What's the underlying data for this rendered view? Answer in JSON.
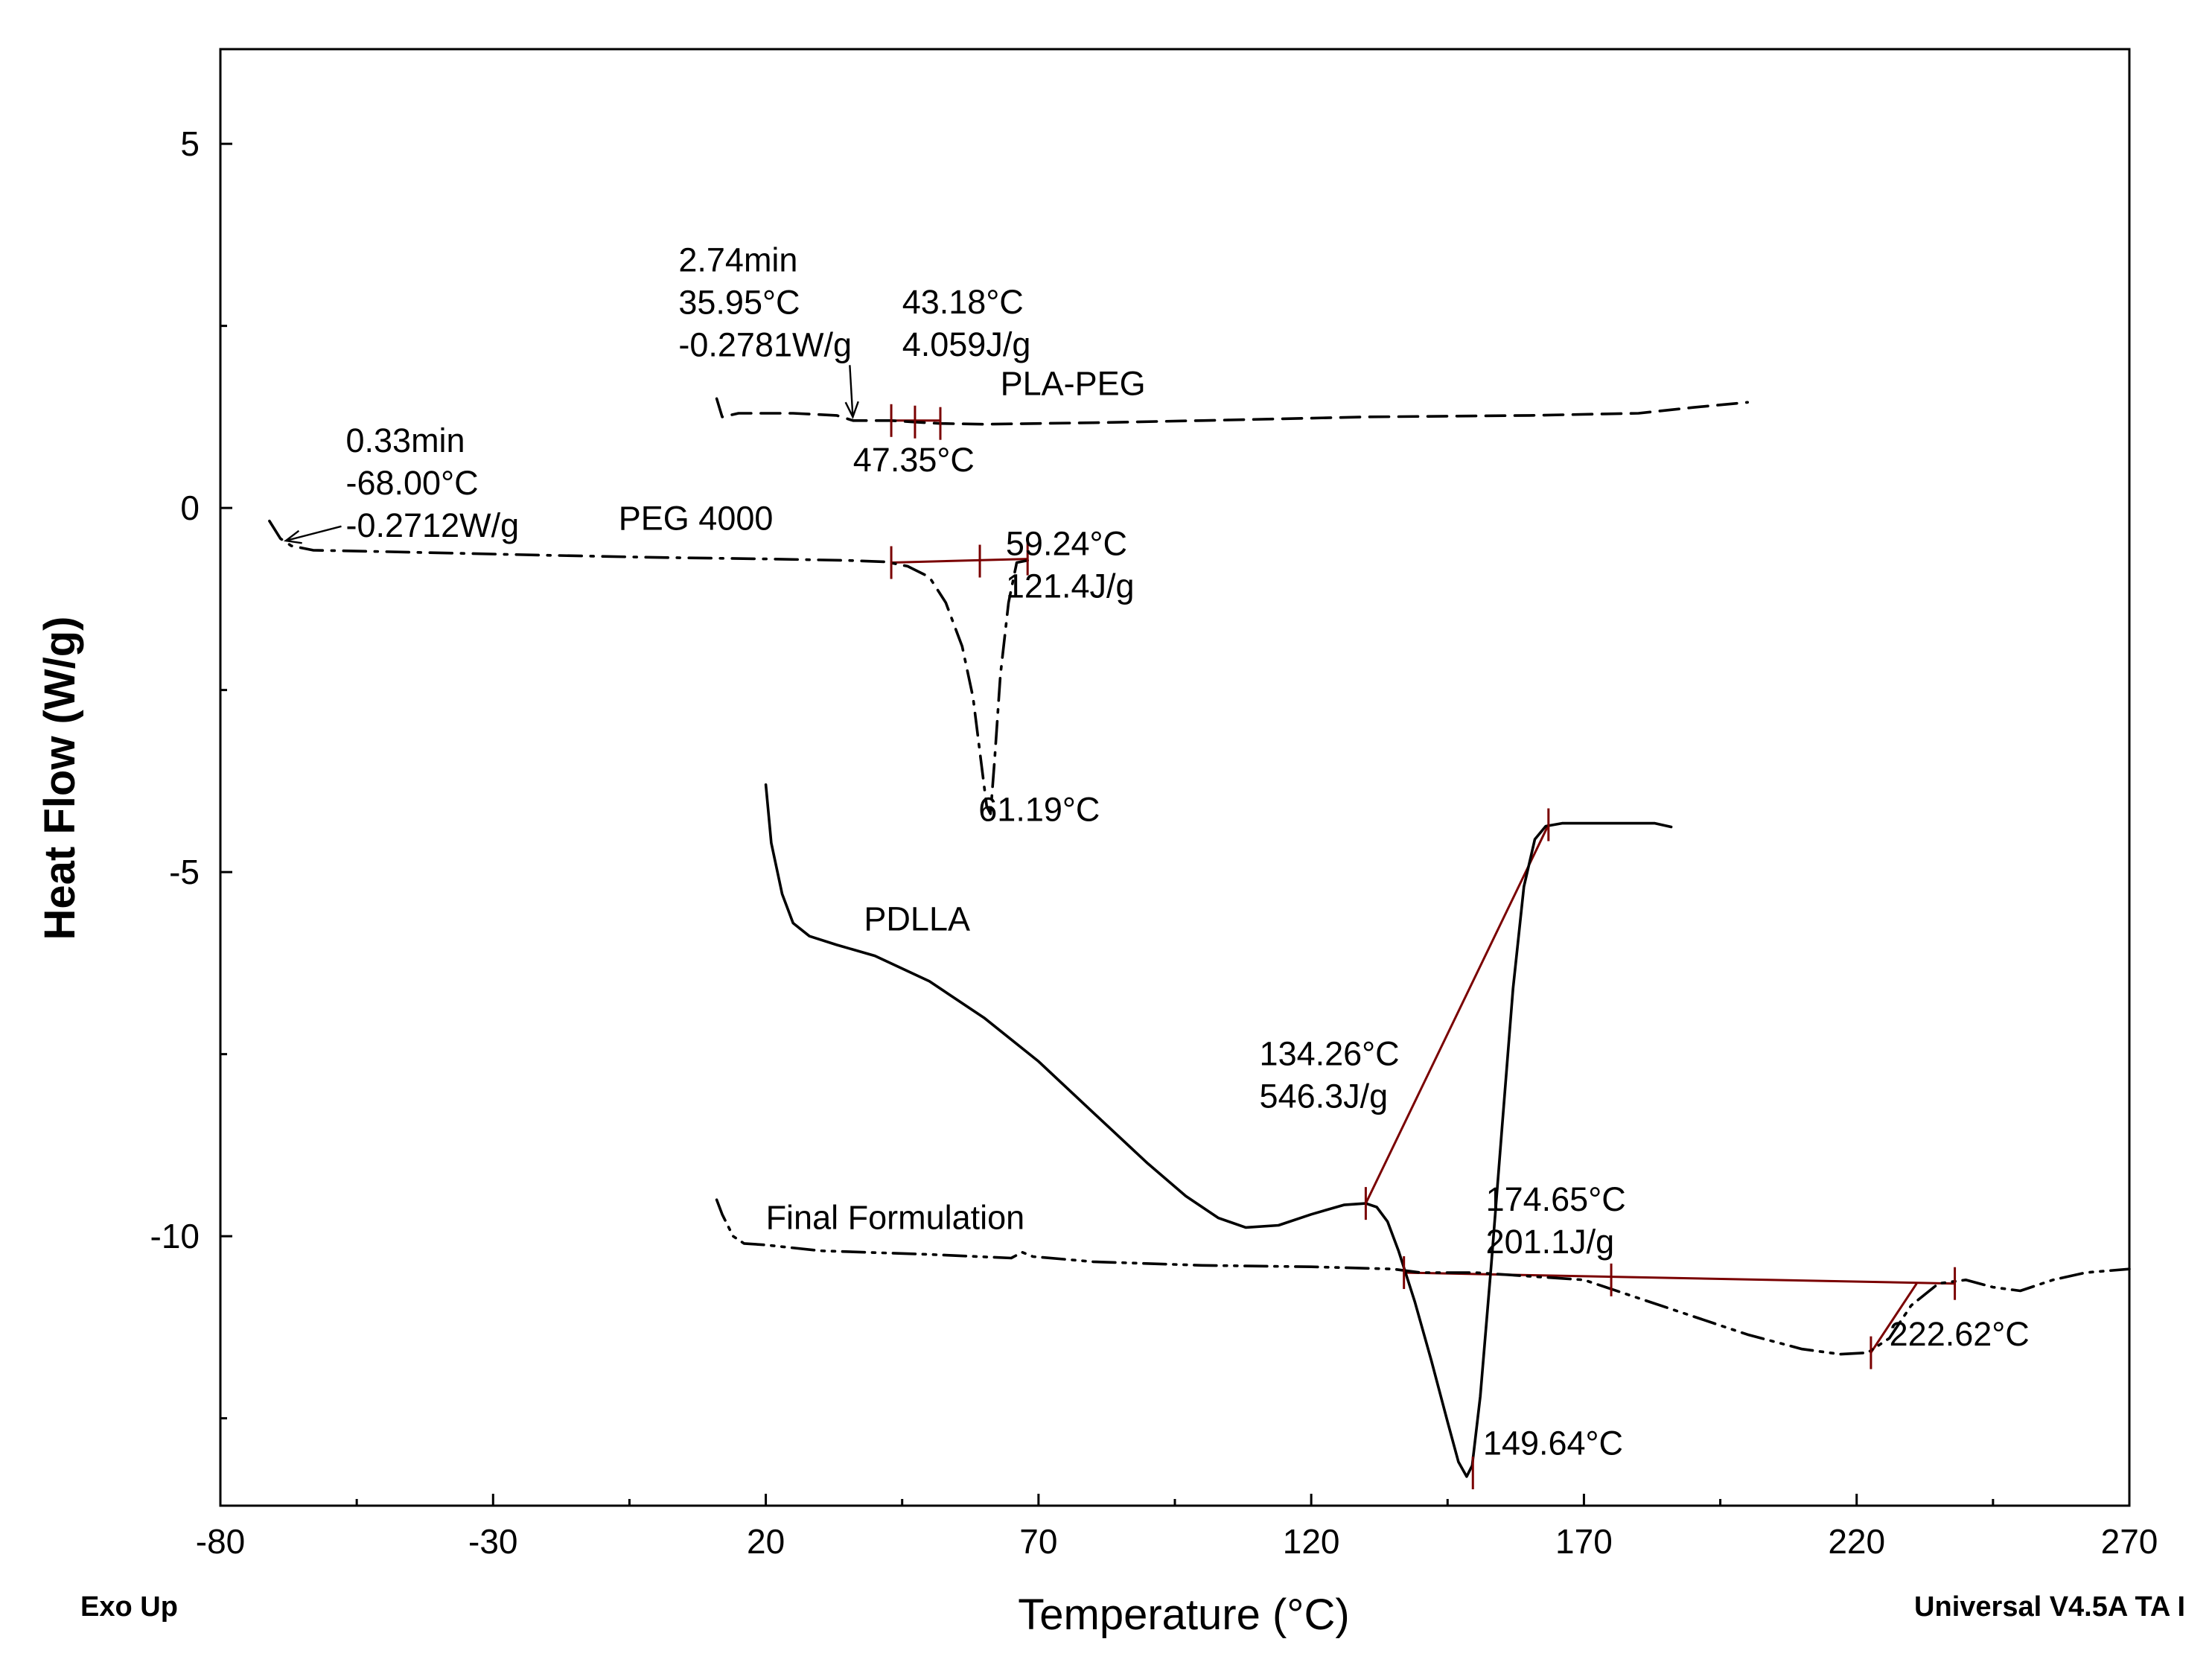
{
  "chart_data": {
    "type": "line",
    "title": "",
    "xlabel": "Temperature (°C)",
    "ylabel": "Heat Flow (W/g)",
    "xlim": [
      -80,
      270
    ],
    "ylim": [
      -13.7,
      6.3
    ],
    "xticks": [
      -80,
      -30,
      20,
      70,
      120,
      170,
      220,
      270
    ],
    "xtick_labels": [
      "-80",
      "-30",
      "20",
      "70",
      "120",
      "170",
      "220",
      "270"
    ],
    "yticks": [
      5,
      0,
      -5,
      -10
    ],
    "ytick_labels": [
      "5",
      "0",
      "-5",
      "-10"
    ],
    "exo_label": "Exo Up",
    "software_label": "Universal V4.5A TA I",
    "series": [
      {
        "name": "PLA-PEG",
        "style": "dashed",
        "label_at": [
          63,
          1.55
        ],
        "points": [
          [
            11,
            1.5
          ],
          [
            12,
            1.25
          ],
          [
            15,
            1.3
          ],
          [
            25,
            1.3
          ],
          [
            33,
            1.27
          ],
          [
            36,
            1.2
          ],
          [
            40,
            1.2
          ],
          [
            43,
            1.2
          ],
          [
            47,
            1.18
          ],
          [
            52,
            1.16
          ],
          [
            60,
            1.15
          ],
          [
            80,
            1.17
          ],
          [
            100,
            1.2
          ],
          [
            130,
            1.25
          ],
          [
            160,
            1.27
          ],
          [
            180,
            1.3
          ],
          [
            190,
            1.38
          ],
          [
            200,
            1.45
          ]
        ]
      },
      {
        "name": "PEG 4000",
        "style": "dash-dot",
        "label_at": [
          -7,
          -0.3
        ],
        "points": [
          [
            -71,
            -0.18
          ],
          [
            -69,
            -0.42
          ],
          [
            -67,
            -0.52
          ],
          [
            -63,
            -0.58
          ],
          [
            -50,
            -0.6
          ],
          [
            -20,
            -0.65
          ],
          [
            0,
            -0.68
          ],
          [
            20,
            -0.7
          ],
          [
            35,
            -0.72
          ],
          [
            42,
            -0.74
          ],
          [
            46,
            -0.8
          ],
          [
            50,
            -0.95
          ],
          [
            53,
            -1.3
          ],
          [
            56,
            -1.9
          ],
          [
            58,
            -2.6
          ],
          [
            59.5,
            -3.5
          ],
          [
            60.5,
            -4.1
          ],
          [
            61.2,
            -4.2
          ],
          [
            62,
            -3.4
          ],
          [
            63,
            -2.3
          ],
          [
            64.5,
            -1.3
          ],
          [
            66,
            -0.75
          ],
          [
            68,
            -0.72
          ]
        ]
      },
      {
        "name": "PDLLA",
        "style": "solid",
        "label_at": [
          38,
          -5.8
        ],
        "points": [
          [
            20,
            -3.8
          ],
          [
            21,
            -4.6
          ],
          [
            23,
            -5.3
          ],
          [
            25,
            -5.7
          ],
          [
            28,
            -5.88
          ],
          [
            33,
            -6.0
          ],
          [
            40,
            -6.15
          ],
          [
            50,
            -6.5
          ],
          [
            60,
            -7.0
          ],
          [
            70,
            -7.6
          ],
          [
            80,
            -8.3
          ],
          [
            90,
            -9.0
          ],
          [
            97,
            -9.45
          ],
          [
            103,
            -9.75
          ],
          [
            108,
            -9.88
          ],
          [
            114,
            -9.85
          ],
          [
            120,
            -9.7
          ],
          [
            126,
            -9.57
          ],
          [
            130,
            -9.55
          ],
          [
            132,
            -9.6
          ],
          [
            134,
            -9.8
          ],
          [
            136,
            -10.2
          ],
          [
            139,
            -10.9
          ],
          [
            142,
            -11.7
          ],
          [
            145,
            -12.55
          ],
          [
            147,
            -13.1
          ],
          [
            148.5,
            -13.3
          ],
          [
            149.5,
            -13.15
          ],
          [
            151,
            -12.2
          ],
          [
            153,
            -10.4
          ],
          [
            155,
            -8.5
          ],
          [
            157,
            -6.6
          ],
          [
            159,
            -5.2
          ],
          [
            161,
            -4.55
          ],
          [
            163,
            -4.37
          ],
          [
            166,
            -4.33
          ],
          [
            170,
            -4.33
          ],
          [
            175,
            -4.33
          ],
          [
            183,
            -4.33
          ],
          [
            186,
            -4.38
          ]
        ]
      },
      {
        "name": "Final Formulation",
        "style": "dash-dot-dot",
        "label_at": [
          20,
          -9.9
        ],
        "points": [
          [
            11,
            -9.5
          ],
          [
            12,
            -9.7
          ],
          [
            14,
            -10.0
          ],
          [
            16,
            -10.1
          ],
          [
            20,
            -10.12
          ],
          [
            30,
            -10.2
          ],
          [
            50,
            -10.25
          ],
          [
            65,
            -10.3
          ],
          [
            67,
            -10.22
          ],
          [
            69,
            -10.28
          ],
          [
            80,
            -10.35
          ],
          [
            100,
            -10.4
          ],
          [
            120,
            -10.42
          ],
          [
            135,
            -10.45
          ],
          [
            140,
            -10.5
          ],
          [
            150,
            -10.5
          ],
          [
            160,
            -10.55
          ],
          [
            170,
            -10.6
          ],
          [
            180,
            -10.85
          ],
          [
            190,
            -11.1
          ],
          [
            200,
            -11.35
          ],
          [
            210,
            -11.55
          ],
          [
            217,
            -11.62
          ],
          [
            222,
            -11.6
          ],
          [
            226,
            -11.4
          ],
          [
            230,
            -10.95
          ],
          [
            235,
            -10.65
          ],
          [
            240,
            -10.6
          ],
          [
            245,
            -10.7
          ],
          [
            250,
            -10.75
          ],
          [
            256,
            -10.6
          ],
          [
            262,
            -10.5
          ],
          [
            270,
            -10.45
          ]
        ]
      }
    ],
    "annotations": [
      {
        "lines": [
          "2.74min",
          "35.95°C",
          "-0.2781W/g"
        ],
        "at": [
          4,
          3.25
        ],
        "arrow_to": [
          35.95,
          1.25
        ]
      },
      {
        "lines": [
          "43.18°C",
          "4.059J/g"
        ],
        "at": [
          45,
          2.67
        ]
      },
      {
        "lines": [
          "47.35°C"
        ],
        "at": [
          36,
          0.5
        ]
      },
      {
        "lines": [
          "0.33min",
          "-68.00°C",
          "-0.2712W/g"
        ],
        "at": [
          -57,
          0.77
        ],
        "arrow_to": [
          -68,
          -0.45
        ]
      },
      {
        "lines": [
          "59.24°C",
          "121.4J/g"
        ],
        "at": [
          64,
          -0.65
        ]
      },
      {
        "lines": [
          "61.19°C"
        ],
        "at": [
          59,
          -4.3
        ]
      },
      {
        "lines": [
          "134.26°C",
          "546.3J/g"
        ],
        "at": [
          110.5,
          -7.65
        ]
      },
      {
        "lines": [
          "174.65°C",
          "201.1J/g"
        ],
        "at": [
          152,
          -9.65
        ]
      },
      {
        "lines": [
          "222.62°C"
        ],
        "at": [
          226,
          -11.5
        ]
      },
      {
        "lines": [
          "149.64°C"
        ],
        "at": [
          151.5,
          -13.0
        ]
      }
    ],
    "construction_lines": [
      {
        "from": [
          42.5,
          1.2
        ],
        "to": [
          52,
          1.2
        ]
      },
      {
        "from": [
          43,
          -0.75
        ],
        "to": [
          68,
          -0.7
        ]
      },
      {
        "from": [
          130,
          -9.55
        ],
        "to": [
          163.5,
          -4.35
        ]
      },
      {
        "from": [
          137,
          -10.5
        ],
        "to": [
          238,
          -10.65
        ]
      },
      {
        "from": [
          222.6,
          -11.6
        ],
        "to": [
          231,
          -10.65
        ]
      }
    ],
    "markers": [
      [
        43,
        1.2
      ],
      [
        47.35,
        1.18
      ],
      [
        52,
        1.16
      ],
      [
        43,
        -0.75
      ],
      [
        59.24,
        -0.73
      ],
      [
        68,
        -0.7
      ],
      [
        130,
        -9.55
      ],
      [
        163.5,
        -4.35
      ],
      [
        149.64,
        -13.25
      ],
      [
        137,
        -10.5
      ],
      [
        175,
        -10.6
      ],
      [
        238,
        -10.65
      ],
      [
        222.62,
        -11.6
      ]
    ]
  }
}
